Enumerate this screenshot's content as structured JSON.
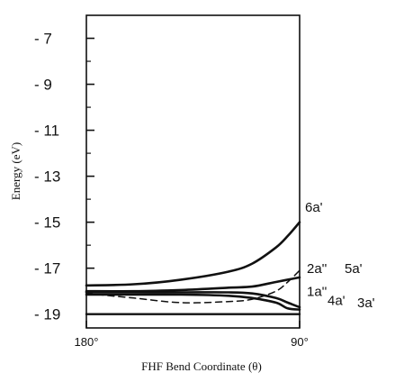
{
  "chart_data": {
    "type": "line",
    "title": "",
    "xlabel": "FHF Bend Coordinate (θ)",
    "ylabel": "Energy (eV)",
    "x_tick_labels": [
      "180°",
      "90°"
    ],
    "x": [
      180,
      160,
      140,
      120,
      110,
      100,
      95,
      90
    ],
    "xlim": [
      180,
      90
    ],
    "ylim": [
      -19.6,
      -6.0
    ],
    "y_ticks": [
      -7,
      -9,
      -11,
      -13,
      -15,
      -17,
      -19
    ],
    "y_tick_labels": [
      "- 7",
      "- 9",
      "- 11",
      "- 13",
      "- 15",
      "- 17",
      "- 19"
    ],
    "grid": false,
    "series": [
      {
        "name": "6a'",
        "style": "solid",
        "values": [
          -17.75,
          -17.7,
          -17.5,
          -17.15,
          -16.8,
          -16.1,
          -15.6,
          -15.0
        ]
      },
      {
        "name": "5a'",
        "style": "solid",
        "values": [
          -18.0,
          -18.0,
          -17.95,
          -17.85,
          -17.8,
          -17.6,
          -17.5,
          -17.4
        ]
      },
      {
        "name": "2a''",
        "style": "dashed",
        "values": [
          -18.1,
          -18.3,
          -18.5,
          -18.45,
          -18.35,
          -18.0,
          -17.6,
          -17.1
        ]
      },
      {
        "name": "1a''",
        "style": "solid",
        "values": [
          -18.05,
          -18.05,
          -18.05,
          -18.05,
          -18.1,
          -18.3,
          -18.5,
          -18.7
        ]
      },
      {
        "name": "4a'",
        "style": "solid",
        "values": [
          -18.15,
          -18.15,
          -18.15,
          -18.2,
          -18.3,
          -18.5,
          -18.75,
          -18.8
        ]
      },
      {
        "name": "3a'",
        "style": "solid",
        "values": [
          -19.0,
          -19.0,
          -19.0,
          -19.0,
          -19.0,
          -19.0,
          -19.0,
          -19.0
        ]
      }
    ]
  }
}
